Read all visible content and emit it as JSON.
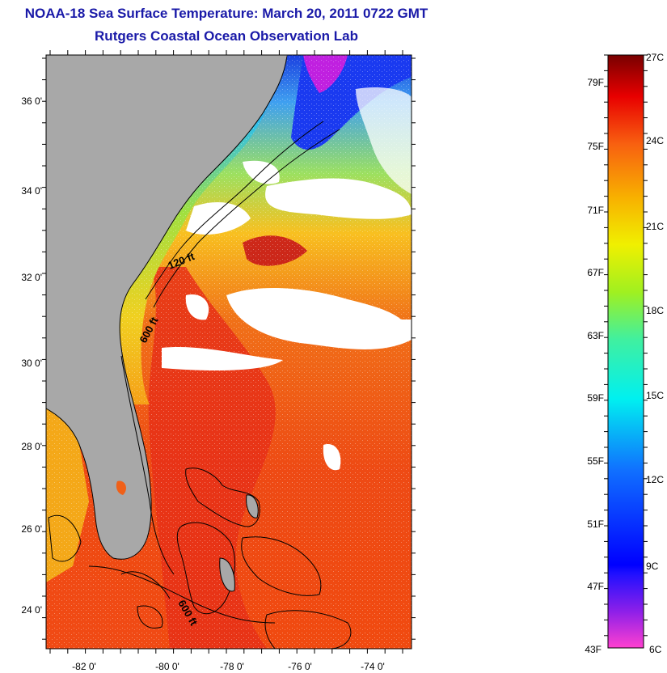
{
  "title": {
    "line1": "NOAA-18 Sea Surface Temperature:  March 20, 2011 0722 GMT",
    "line2": "Rutgers Coastal Ocean Observation Lab"
  },
  "map": {
    "lat_labels": [
      "36 0'",
      "34 0'",
      "32 0'",
      "30 0'",
      "28 0'",
      "26 0'",
      "24 0'"
    ],
    "lon_labels": [
      "-82 0'",
      "-80 0'",
      "-78 0'",
      "-76 0'",
      "-74 0'"
    ],
    "contour_labels": [
      "120 ft",
      "600 ft",
      "600 ft"
    ],
    "land_color": "#a8a8a8",
    "cloud_color": "#ffffff"
  },
  "colorbar": {
    "fahrenheit_labels": [
      "79F",
      "75F",
      "71F",
      "67F",
      "63F",
      "59F",
      "55F",
      "51F",
      "47F",
      "43F"
    ],
    "celsius_labels": [
      "27C",
      "24C",
      "21C",
      "18C",
      "15C",
      "12C",
      "9C",
      "6C"
    ]
  }
}
